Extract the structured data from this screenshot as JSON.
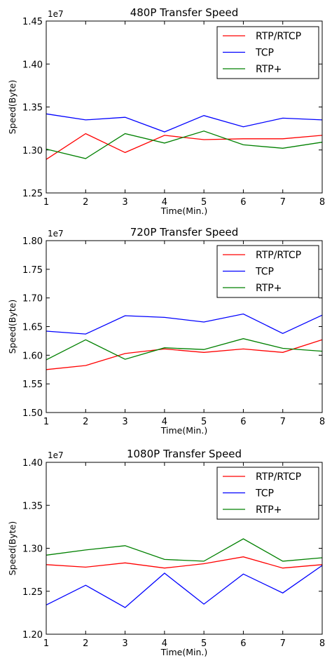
{
  "chart_data": [
    {
      "type": "line",
      "title": "480P Transfer Speed",
      "xlabel": "Time(Min.)",
      "ylabel": "Speed(Byte)",
      "y_multiplier": "1e7",
      "x": [
        1,
        2,
        3,
        4,
        5,
        6,
        7,
        8
      ],
      "xlim": [
        1,
        8
      ],
      "ylim": [
        1.25,
        1.45
      ],
      "x_ticks": [
        "1",
        "2",
        "3",
        "4",
        "5",
        "6",
        "7",
        "8"
      ],
      "y_ticks": [
        "1.25",
        "1.30",
        "1.35",
        "1.40",
        "1.45"
      ],
      "grid": false,
      "legend_position": "top-right",
      "series": [
        {
          "name": "RTP/RTCP",
          "color": "#ff0000",
          "values": [
            1.289,
            1.319,
            1.297,
            1.317,
            1.312,
            1.313,
            1.313,
            1.317
          ]
        },
        {
          "name": "TCP",
          "color": "#0000ff",
          "values": [
            1.342,
            1.335,
            1.338,
            1.321,
            1.34,
            1.327,
            1.337,
            1.335
          ]
        },
        {
          "name": "RTP+",
          "color": "#008000",
          "values": [
            1.301,
            1.29,
            1.319,
            1.308,
            1.322,
            1.306,
            1.302,
            1.309
          ]
        }
      ]
    },
    {
      "type": "line",
      "title": "720P Transfer Speed",
      "xlabel": "Time(Min.)",
      "ylabel": "Speed(Byte)",
      "y_multiplier": "1e7",
      "x": [
        1,
        2,
        3,
        4,
        5,
        6,
        7,
        8
      ],
      "xlim": [
        1,
        8
      ],
      "ylim": [
        1.5,
        1.8
      ],
      "x_ticks": [
        "1",
        "2",
        "3",
        "4",
        "5",
        "6",
        "7",
        "8"
      ],
      "y_ticks": [
        "1.50",
        "1.55",
        "1.60",
        "1.65",
        "1.70",
        "1.75",
        "1.80"
      ],
      "grid": false,
      "legend_position": "top-right",
      "series": [
        {
          "name": "RTP/RTCP",
          "color": "#ff0000",
          "values": [
            1.575,
            1.582,
            1.603,
            1.611,
            1.605,
            1.611,
            1.605,
            1.627
          ]
        },
        {
          "name": "TCP",
          "color": "#0000ff",
          "values": [
            1.642,
            1.637,
            1.669,
            1.666,
            1.658,
            1.672,
            1.638,
            1.67
          ]
        },
        {
          "name": "RTP+",
          "color": "#008000",
          "values": [
            1.592,
            1.627,
            1.593,
            1.613,
            1.61,
            1.629,
            1.612,
            1.607
          ]
        }
      ]
    },
    {
      "type": "line",
      "title": "1080P Transfer Speed",
      "xlabel": "Time(Min.)",
      "ylabel": "Speed(Byte)",
      "y_multiplier": "1e7",
      "x": [
        1,
        2,
        3,
        4,
        5,
        6,
        7,
        8
      ],
      "xlim": [
        1,
        8
      ],
      "ylim": [
        1.2,
        1.4
      ],
      "x_ticks": [
        "1",
        "2",
        "3",
        "4",
        "5",
        "6",
        "7",
        "8"
      ],
      "y_ticks": [
        "1.20",
        "1.25",
        "1.30",
        "1.35",
        "1.40"
      ],
      "grid": false,
      "legend_position": "top-right",
      "series": [
        {
          "name": "RTP/RTCP",
          "color": "#ff0000",
          "values": [
            1.281,
            1.278,
            1.283,
            1.277,
            1.282,
            1.29,
            1.277,
            1.281
          ]
        },
        {
          "name": "TCP",
          "color": "#0000ff",
          "values": [
            1.234,
            1.257,
            1.231,
            1.271,
            1.235,
            1.27,
            1.248,
            1.28
          ]
        },
        {
          "name": "RTP+",
          "color": "#008000",
          "values": [
            1.292,
            1.298,
            1.303,
            1.287,
            1.285,
            1.311,
            1.285,
            1.289
          ]
        }
      ]
    }
  ]
}
